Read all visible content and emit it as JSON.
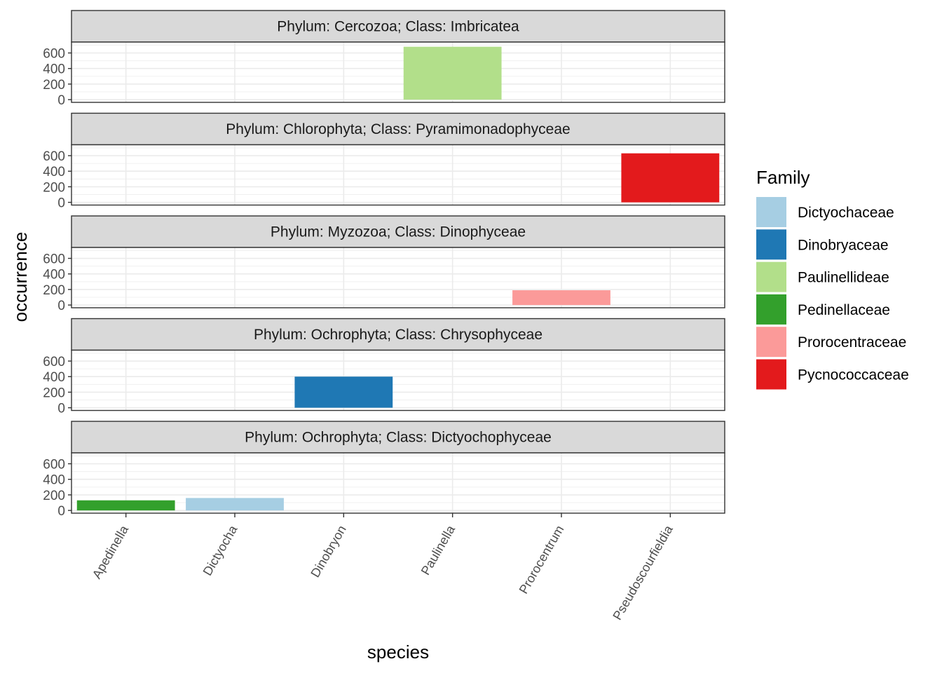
{
  "chart_data": {
    "type": "bar",
    "xlabel": "species",
    "ylabel": "occurrence",
    "categories": [
      "Apedinella",
      "Dictyocha",
      "Dinobryon",
      "Paulinella",
      "Prorocentrum",
      "Pseudoscourfieldia"
    ],
    "yticks": [
      0,
      200,
      400,
      600
    ],
    "ylim": [
      -35,
      740
    ],
    "grid": true,
    "legend": {
      "title": "Family",
      "position": "right",
      "items": [
        {
          "label": "Dictyochaceae",
          "color": "#a6cee3"
        },
        {
          "label": "Dinobryaceae",
          "color": "#1f78b4"
        },
        {
          "label": "Paulinellideae",
          "color": "#b2df8a"
        },
        {
          "label": "Pedinellaceae",
          "color": "#33a02c"
        },
        {
          "label": "Prorocentraceae",
          "color": "#fb9a99"
        },
        {
          "label": "Pycnococcaceae",
          "color": "#e31a1c"
        }
      ]
    },
    "panels": [
      {
        "label": "Phylum: Cercozoa; Class: Imbricatea",
        "bars": [
          {
            "species": "Paulinella",
            "family": "Paulinellideae",
            "value": 680
          }
        ]
      },
      {
        "label": "Phylum: Chlorophyta; Class: Pyramimonadophyceae",
        "bars": [
          {
            "species": "Pseudoscourfieldia",
            "family": "Pycnococcaceae",
            "value": 630
          }
        ]
      },
      {
        "label": "Phylum: Myzozoa; Class: Dinophyceae",
        "bars": [
          {
            "species": "Prorocentrum",
            "family": "Prorocentraceae",
            "value": 190
          }
        ]
      },
      {
        "label": "Phylum: Ochrophyta; Class: Chrysophyceae",
        "bars": [
          {
            "species": "Dinobryon",
            "family": "Dinobryaceae",
            "value": 400
          }
        ]
      },
      {
        "label": "Phylum: Ochrophyta; Class: Dictyochophyceae",
        "bars": [
          {
            "species": "Apedinella",
            "family": "Pedinellaceae",
            "value": 130
          },
          {
            "species": "Dictyocha",
            "family": "Dictyochaceae",
            "value": 160
          }
        ]
      }
    ]
  }
}
